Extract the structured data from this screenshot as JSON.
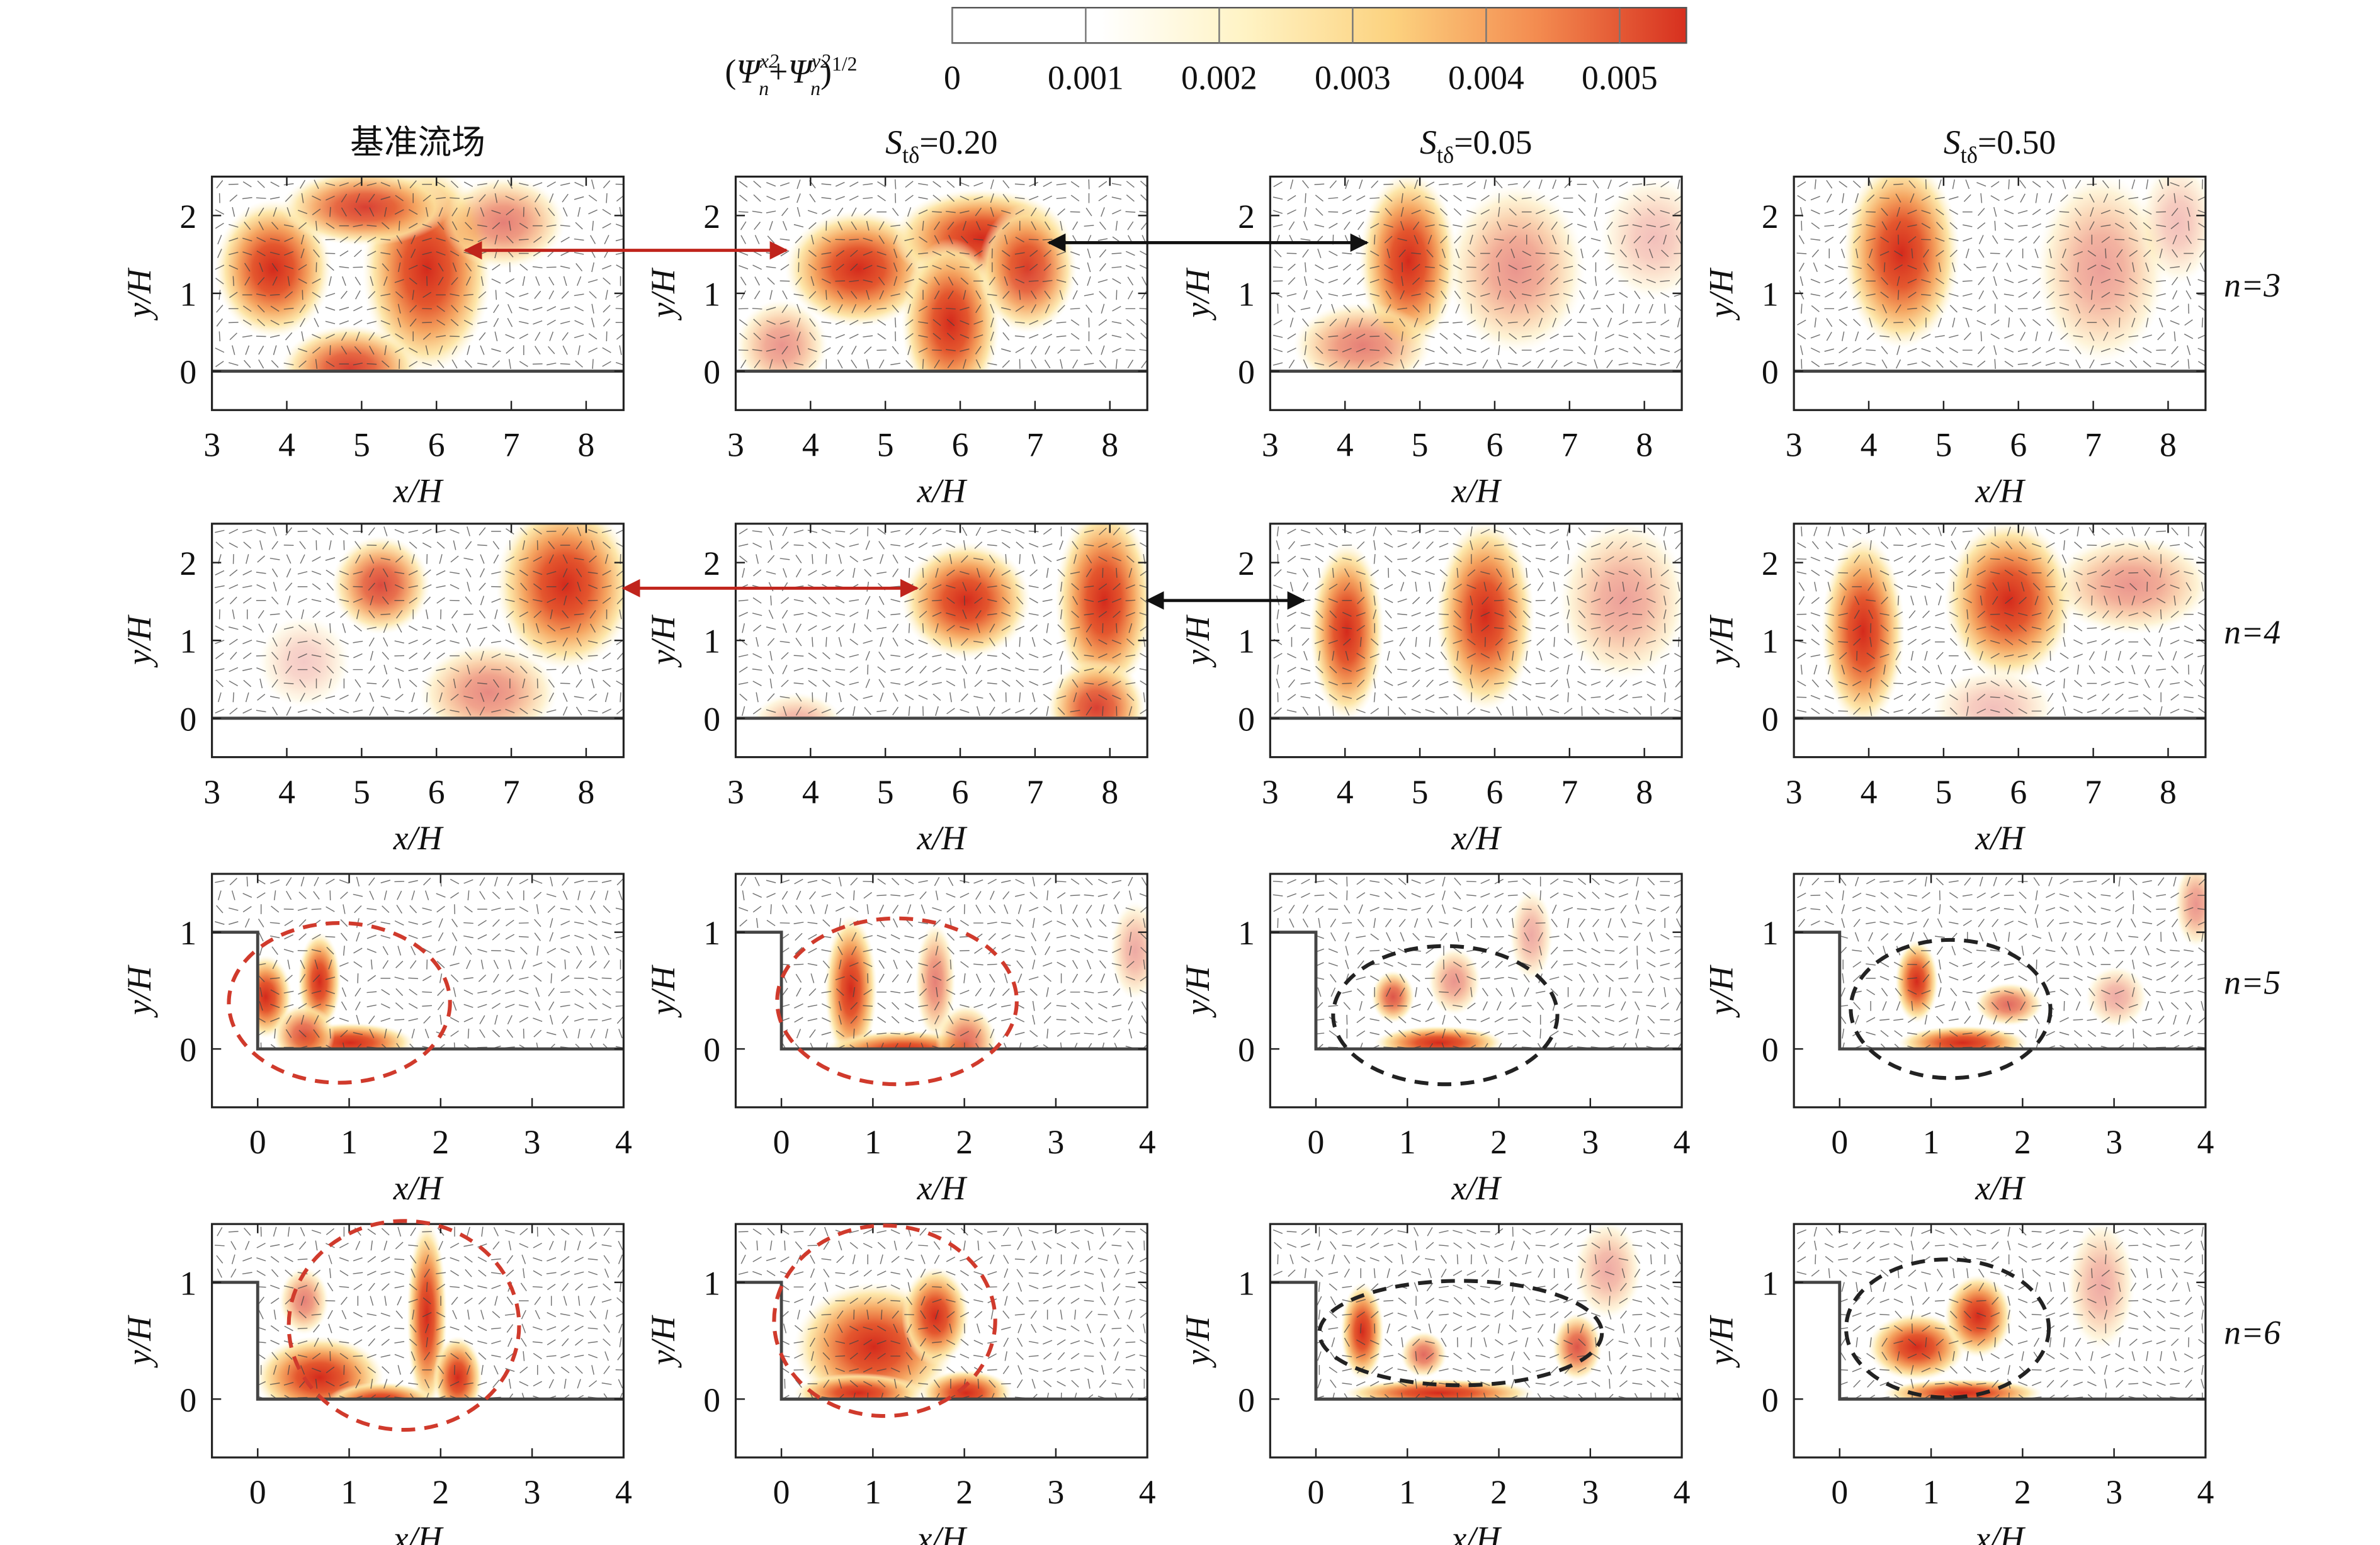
{
  "colorbar": {
    "label": [
      "(",
      "Ψ",
      "x2",
      "n",
      "+",
      "Ψ",
      "y2",
      "n",
      ")",
      "1/2"
    ],
    "lim": [
      0,
      0.0055
    ],
    "ticks": [
      0,
      0.001,
      0.002,
      0.003,
      0.004,
      0.005
    ],
    "colors": [
      "#ffffff",
      "#ffffff",
      "#fff3c4",
      "#fcd27f",
      "#f38a4f",
      "#d7301f"
    ]
  },
  "chart_data": [
    {
      "type": "contour",
      "title": [
        "基准流场"
      ],
      "xlabel": "x/H",
      "ylabel": "y/H",
      "xlim": [
        3,
        8.5
      ],
      "ylim": [
        -0.5,
        2.5
      ],
      "xticks": [
        3,
        4,
        5,
        6,
        7,
        8
      ],
      "yticks": [
        0,
        1,
        2
      ]
    },
    {
      "type": "contour",
      "title": [
        "S",
        "tδ",
        "=0.20"
      ],
      "xlabel": "x/H",
      "ylabel": "y/H",
      "xlim": [
        3,
        8.5
      ],
      "ylim": [
        -0.5,
        2.5
      ],
      "xticks": [
        3,
        4,
        5,
        6,
        7,
        8
      ],
      "yticks": [
        0,
        1,
        2
      ]
    },
    {
      "type": "contour",
      "title": [
        "S",
        "tδ",
        "=0.05"
      ],
      "xlabel": "x/H",
      "ylabel": "y/H",
      "xlim": [
        3,
        8.5
      ],
      "ylim": [
        -0.5,
        2.5
      ],
      "xticks": [
        3,
        4,
        5,
        6,
        7,
        8
      ],
      "yticks": [
        0,
        1,
        2
      ]
    },
    {
      "type": "contour",
      "title": [
        "S",
        "tδ",
        "=0.50"
      ],
      "annotation": "n=3",
      "xlabel": "x/H",
      "ylabel": "y/H",
      "xlim": [
        3,
        8.5
      ],
      "ylim": [
        -0.5,
        2.5
      ],
      "xticks": [
        3,
        4,
        5,
        6,
        7,
        8
      ],
      "yticks": [
        0,
        1,
        2
      ]
    },
    {
      "type": "contour",
      "xlabel": "x/H",
      "ylabel": "y/H",
      "xlim": [
        3,
        8.5
      ],
      "ylim": [
        -0.5,
        2.5
      ],
      "xticks": [
        3,
        4,
        5,
        6,
        7,
        8
      ],
      "yticks": [
        0,
        1,
        2
      ]
    },
    {
      "type": "contour",
      "xlabel": "x/H",
      "ylabel": "y/H",
      "xlim": [
        3,
        8.5
      ],
      "ylim": [
        -0.5,
        2.5
      ],
      "xticks": [
        3,
        4,
        5,
        6,
        7,
        8
      ],
      "yticks": [
        0,
        1,
        2
      ]
    },
    {
      "type": "contour",
      "xlabel": "x/H",
      "ylabel": "y/H",
      "xlim": [
        3,
        8.5
      ],
      "ylim": [
        -0.5,
        2.5
      ],
      "xticks": [
        3,
        4,
        5,
        6,
        7,
        8
      ],
      "yticks": [
        0,
        1,
        2
      ]
    },
    {
      "type": "contour",
      "annotation": "n=4",
      "xlabel": "x/H",
      "ylabel": "y/H",
      "xlim": [
        3,
        8.5
      ],
      "ylim": [
        -0.5,
        2.5
      ],
      "xticks": [
        3,
        4,
        5,
        6,
        7,
        8
      ],
      "yticks": [
        0,
        1,
        2
      ]
    },
    {
      "type": "contour",
      "xlabel": "x/H",
      "ylabel": "y/H",
      "xlim": [
        -0.5,
        4
      ],
      "ylim": [
        -0.5,
        1.5
      ],
      "xticks": [
        0,
        1,
        2,
        3,
        4
      ],
      "yticks": [
        0,
        1
      ]
    },
    {
      "type": "contour",
      "xlabel": "x/H",
      "ylabel": "y/H",
      "xlim": [
        -0.5,
        4
      ],
      "ylim": [
        -0.5,
        1.5
      ],
      "xticks": [
        0,
        1,
        2,
        3,
        4
      ],
      "yticks": [
        0,
        1
      ]
    },
    {
      "type": "contour",
      "xlabel": "x/H",
      "ylabel": "y/H",
      "xlim": [
        -0.5,
        4
      ],
      "ylim": [
        -0.5,
        1.5
      ],
      "xticks": [
        0,
        1,
        2,
        3,
        4
      ],
      "yticks": [
        0,
        1
      ]
    },
    {
      "type": "contour",
      "annotation": "n=5",
      "xlabel": "x/H",
      "ylabel": "y/H",
      "xlim": [
        -0.5,
        4
      ],
      "ylim": [
        -0.5,
        1.5
      ],
      "xticks": [
        0,
        1,
        2,
        3,
        4
      ],
      "yticks": [
        0,
        1
      ]
    },
    {
      "type": "contour",
      "xlabel": "x/H",
      "ylabel": "y/H",
      "xlim": [
        -0.5,
        4
      ],
      "ylim": [
        -0.5,
        1.5
      ],
      "xticks": [
        0,
        1,
        2,
        3,
        4
      ],
      "yticks": [
        0,
        1
      ]
    },
    {
      "type": "contour",
      "xlabel": "x/H",
      "ylabel": "y/H",
      "xlim": [
        -0.5,
        4
      ],
      "ylim": [
        -0.5,
        1.5
      ],
      "xticks": [
        0,
        1,
        2,
        3,
        4
      ],
      "yticks": [
        0,
        1
      ]
    },
    {
      "type": "contour",
      "xlabel": "x/H",
      "ylabel": "y/H",
      "xlim": [
        -0.5,
        4
      ],
      "ylim": [
        -0.5,
        1.5
      ],
      "xticks": [
        0,
        1,
        2,
        3,
        4
      ],
      "yticks": [
        0,
        1
      ]
    },
    {
      "type": "contour",
      "annotation": "n=6",
      "xlabel": "x/H",
      "ylabel": "y/H",
      "xlim": [
        -0.5,
        4
      ],
      "ylim": [
        -0.5,
        1.5
      ],
      "xticks": [
        0,
        1,
        2,
        3,
        4
      ],
      "yticks": [
        0,
        1
      ]
    }
  ]
}
